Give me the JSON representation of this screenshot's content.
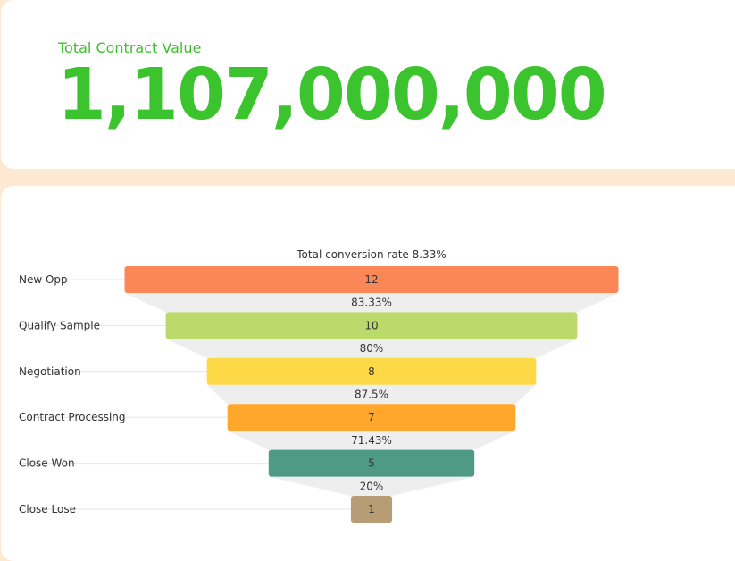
{
  "kpi": {
    "label": "Total Contract Value",
    "value": "1,107,000,000"
  },
  "colors": {
    "accent": "#3cc12d",
    "background": "#fde9d1",
    "connector": "#eeeeee"
  },
  "chart_data": {
    "type": "funnel",
    "title": "Total conversion rate 8.33%",
    "categories": [
      "New Opp",
      "Qualify Sample",
      "Negotiation",
      "Contract Processing",
      "Close Won",
      "Close Lose"
    ],
    "values": [
      12,
      10,
      8,
      7,
      5,
      1
    ],
    "conversion_rates": [
      "83.33%",
      "80%",
      "87.5%",
      "71.43%",
      "20%"
    ],
    "colors": [
      "#fc8756",
      "#bcda6c",
      "#fdd847",
      "#fea72a",
      "#4e9a85",
      "#b89c76"
    ]
  }
}
